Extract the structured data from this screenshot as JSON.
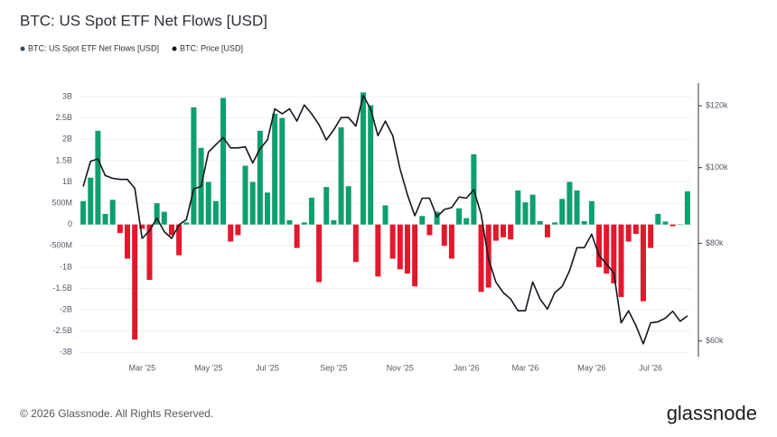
{
  "chart_data": {
    "type": "bar_line",
    "title": "BTC: US Spot ETF Net Flows [USD]",
    "categories": [
      null,
      null,
      null,
      null,
      null,
      null,
      null,
      null,
      "Mar '25",
      null,
      null,
      null,
      null,
      null,
      null,
      null,
      null,
      "May '25",
      null,
      null,
      null,
      null,
      null,
      null,
      null,
      "Jul '25",
      null,
      null,
      null,
      null,
      null,
      null,
      null,
      null,
      "Sep '25",
      null,
      null,
      null,
      null,
      null,
      null,
      null,
      null,
      "Nov '25",
      null,
      null,
      null,
      null,
      null,
      null,
      null,
      null,
      "Jan '26",
      null,
      null,
      null,
      null,
      null,
      null,
      null,
      "Mar '26",
      null,
      null,
      null,
      null,
      null,
      null,
      null,
      null,
      "May '26",
      null,
      null,
      null,
      null,
      null,
      null,
      null,
      "Jul '26",
      null,
      null,
      null,
      null,
      null
    ],
    "series": [
      {
        "name": "BTC: US Spot ETF Net Flows [USD]",
        "color": "#0e9f6e",
        "negative_color": "#e3182d",
        "values": [
          550000000,
          1100000000,
          2200000000,
          250000000,
          580000000,
          -200000000,
          -800000000,
          -2700000000,
          -100000000,
          -1300000000,
          500000000,
          300000000,
          -250000000,
          -720000000,
          50000000,
          2750000000,
          1800000000,
          1000000000,
          550000000,
          2970000000,
          -400000000,
          -250000000,
          1380000000,
          1000000000,
          2200000000,
          750000000,
          2600000000,
          2500000000,
          100000000,
          -550000000,
          50000000,
          630000000,
          -1350000000,
          880000000,
          100000000,
          2280000000,
          900000000,
          -880000000,
          3100000000,
          2800000000,
          -1220000000,
          450000000,
          -800000000,
          -1050000000,
          -1150000000,
          -1450000000,
          200000000,
          -250000000,
          300000000,
          -500000000,
          -800000000,
          380000000,
          150000000,
          1650000000,
          -1580000000,
          -1480000000,
          -380000000,
          -300000000,
          -350000000,
          800000000,
          520000000,
          700000000,
          80000000,
          -300000000,
          50000000,
          600000000,
          1000000000,
          800000000,
          80000000,
          550000000,
          -1000000000,
          -1150000000,
          -1380000000,
          -1700000000,
          -400000000,
          -220000000,
          -1800000000,
          -550000000,
          250000000,
          70000000,
          -40000000,
          0,
          780000000
        ]
      },
      {
        "name": "BTC: Price [USD]",
        "color": "#14161f",
        "axis": "y2",
        "values": [
          94600,
          101900,
          102600,
          97700,
          96900,
          96600,
          96600,
          94100,
          81200,
          83000,
          86200,
          82800,
          81200,
          84500,
          85800,
          93900,
          94600,
          104700,
          107000,
          109300,
          106000,
          106000,
          106300,
          101400,
          105700,
          108500,
          118900,
          117200,
          118900,
          114700,
          120300,
          117200,
          113500,
          108500,
          111800,
          115900,
          115900,
          113000,
          123700,
          118900,
          109900,
          114700,
          109900,
          99600,
          92300,
          86800,
          91400,
          91400,
          86500,
          88400,
          88900,
          91700,
          91400,
          93700,
          87200,
          76400,
          71400,
          69200,
          67900,
          65600,
          65600,
          71400,
          67900,
          65900,
          69200,
          70500,
          73800,
          79000,
          79000,
          82200,
          77200,
          75300,
          73300,
          63300,
          65600,
          62800,
          59500,
          63300,
          63500,
          64200,
          65500,
          63600,
          64600
        ]
      }
    ],
    "ylim": [
      -3100000000,
      3150000000
    ],
    "yticks": [
      {
        "value": -3000000000,
        "label": "-3B"
      },
      {
        "value": -2500000000,
        "label": "-2.5B"
      },
      {
        "value": -2000000000,
        "label": "-2B"
      },
      {
        "value": -1500000000,
        "label": "-1.5B"
      },
      {
        "value": -1000000000,
        "label": "-1B"
      },
      {
        "value": -500000000,
        "label": "-500M"
      },
      0,
      {
        "value": 500000000,
        "label": "500M"
      },
      {
        "value": 1000000000,
        "label": "1B"
      },
      {
        "value": 1500000000,
        "label": "1.5B"
      },
      {
        "value": 2000000000,
        "label": "2B"
      },
      {
        "value": 2500000000,
        "label": "2.5B"
      },
      {
        "value": 3000000000,
        "label": "3B"
      }
    ],
    "y2lim": [
      57300,
      125600
    ],
    "y2ticks": [
      {
        "value": 60000,
        "label": "$60k"
      },
      {
        "value": 80000,
        "label": "$80k"
      },
      {
        "value": 100000,
        "label": "$100k"
      },
      {
        "value": 120000,
        "label": "$120k"
      }
    ],
    "y2_log": true,
    "grid": true,
    "legend": "top-left"
  },
  "footer": {
    "copyright": "© 2026 Glassnode. All Rights Reserved.",
    "brand": "glassnode"
  }
}
